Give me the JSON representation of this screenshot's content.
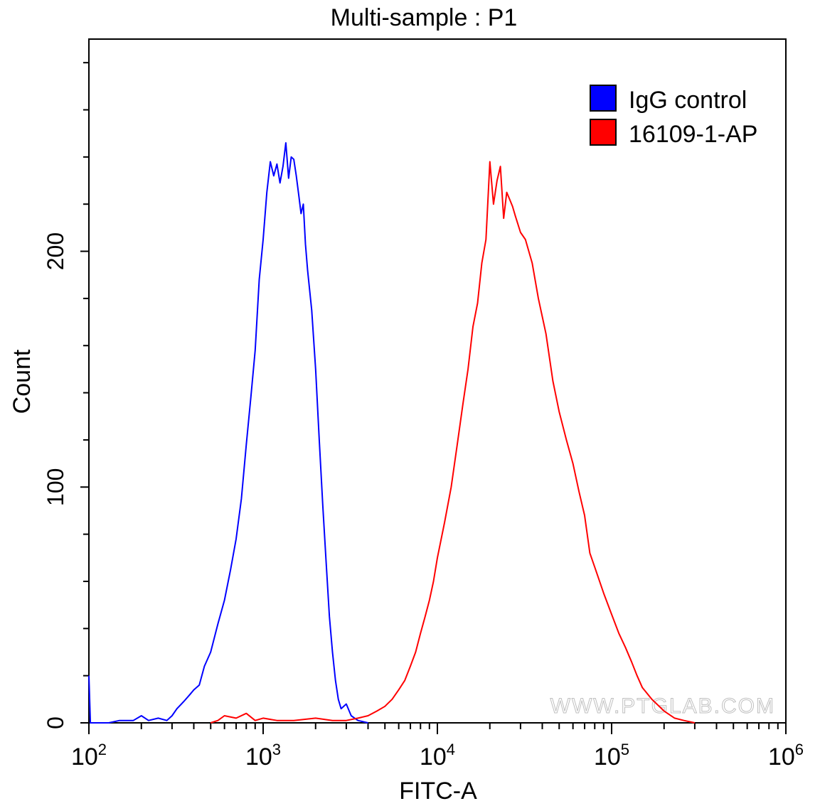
{
  "chart_data": {
    "type": "line",
    "title": "Multi-sample : P1",
    "xlabel": "FITC-A",
    "ylabel": "Count",
    "xscale": "log",
    "xlim": [
      100,
      1000000
    ],
    "ylim": [
      0,
      290
    ],
    "x_ticks": [
      {
        "value": 100,
        "base": "10",
        "exp": "2"
      },
      {
        "value": 1000,
        "base": "10",
        "exp": "3"
      },
      {
        "value": 10000,
        "base": "10",
        "exp": "4"
      },
      {
        "value": 100000,
        "base": "10",
        "exp": "5"
      },
      {
        "value": 1000000,
        "base": "10",
        "exp": "6"
      }
    ],
    "y_ticks": [
      {
        "value": 0,
        "label": "0"
      },
      {
        "value": 100,
        "label": "100"
      },
      {
        "value": 200,
        "label": "200"
      }
    ],
    "y_minor_step": 20,
    "legend": {
      "position": "top-right"
    },
    "watermark": "WWW.PTGLAB.COM",
    "series": [
      {
        "name": "IgG control",
        "color": "#0000ff",
        "points": [
          [
            100,
            20
          ],
          [
            102,
            0
          ],
          [
            130,
            0
          ],
          [
            150,
            1
          ],
          [
            180,
            1
          ],
          [
            200,
            3
          ],
          [
            220,
            1
          ],
          [
            250,
            2
          ],
          [
            280,
            1
          ],
          [
            300,
            3
          ],
          [
            320,
            6
          ],
          [
            350,
            9
          ],
          [
            380,
            12
          ],
          [
            400,
            14
          ],
          [
            430,
            16
          ],
          [
            460,
            24
          ],
          [
            500,
            30
          ],
          [
            550,
            42
          ],
          [
            600,
            52
          ],
          [
            650,
            65
          ],
          [
            700,
            78
          ],
          [
            750,
            95
          ],
          [
            800,
            118
          ],
          [
            850,
            138
          ],
          [
            900,
            158
          ],
          [
            950,
            188
          ],
          [
            1000,
            205
          ],
          [
            1050,
            225
          ],
          [
            1100,
            238
          ],
          [
            1150,
            232
          ],
          [
            1200,
            237
          ],
          [
            1250,
            229
          ],
          [
            1300,
            236
          ],
          [
            1350,
            246
          ],
          [
            1400,
            231
          ],
          [
            1450,
            240
          ],
          [
            1500,
            239
          ],
          [
            1550,
            232
          ],
          [
            1600,
            224
          ],
          [
            1650,
            216
          ],
          [
            1700,
            220
          ],
          [
            1750,
            203
          ],
          [
            1800,
            192
          ],
          [
            1900,
            175
          ],
          [
            2000,
            150
          ],
          [
            2100,
            120
          ],
          [
            2200,
            92
          ],
          [
            2300,
            68
          ],
          [
            2400,
            45
          ],
          [
            2500,
            30
          ],
          [
            2600,
            18
          ],
          [
            2700,
            10
          ],
          [
            2800,
            6
          ],
          [
            3000,
            8
          ],
          [
            3200,
            3
          ],
          [
            3500,
            1
          ],
          [
            4000,
            0
          ]
        ]
      },
      {
        "name": "16109-1-AP",
        "color": "#ff0000",
        "points": [
          [
            500,
            0
          ],
          [
            550,
            1
          ],
          [
            600,
            3
          ],
          [
            700,
            2
          ],
          [
            800,
            4
          ],
          [
            900,
            1
          ],
          [
            1000,
            2
          ],
          [
            1200,
            1
          ],
          [
            1500,
            1
          ],
          [
            2000,
            2
          ],
          [
            2500,
            1
          ],
          [
            3000,
            1
          ],
          [
            3500,
            2
          ],
          [
            4000,
            3
          ],
          [
            4500,
            5
          ],
          [
            5000,
            7
          ],
          [
            5500,
            10
          ],
          [
            6000,
            14
          ],
          [
            6500,
            18
          ],
          [
            7000,
            24
          ],
          [
            7500,
            30
          ],
          [
            8000,
            38
          ],
          [
            8500,
            45
          ],
          [
            9000,
            52
          ],
          [
            9500,
            60
          ],
          [
            10000,
            70
          ],
          [
            11000,
            85
          ],
          [
            12000,
            100
          ],
          [
            13000,
            118
          ],
          [
            14000,
            135
          ],
          [
            15000,
            150
          ],
          [
            16000,
            168
          ],
          [
            17000,
            178
          ],
          [
            18000,
            195
          ],
          [
            19000,
            205
          ],
          [
            20000,
            238
          ],
          [
            21000,
            220
          ],
          [
            22000,
            230
          ],
          [
            23000,
            236
          ],
          [
            24000,
            214
          ],
          [
            25000,
            225
          ],
          [
            26000,
            222
          ],
          [
            27000,
            219
          ],
          [
            28000,
            215
          ],
          [
            30000,
            208
          ],
          [
            32000,
            205
          ],
          [
            35000,
            195
          ],
          [
            38000,
            180
          ],
          [
            42000,
            165
          ],
          [
            46000,
            145
          ],
          [
            50000,
            132
          ],
          [
            55000,
            120
          ],
          [
            60000,
            110
          ],
          [
            65000,
            98
          ],
          [
            70000,
            88
          ],
          [
            75000,
            72
          ],
          [
            80000,
            66
          ],
          [
            90000,
            55
          ],
          [
            100000,
            46
          ],
          [
            110000,
            38
          ],
          [
            120000,
            32
          ],
          [
            130000,
            26
          ],
          [
            140000,
            20
          ],
          [
            150000,
            15
          ],
          [
            170000,
            10
          ],
          [
            200000,
            5
          ],
          [
            230000,
            2
          ],
          [
            260000,
            1
          ],
          [
            300000,
            0
          ]
        ]
      }
    ]
  }
}
